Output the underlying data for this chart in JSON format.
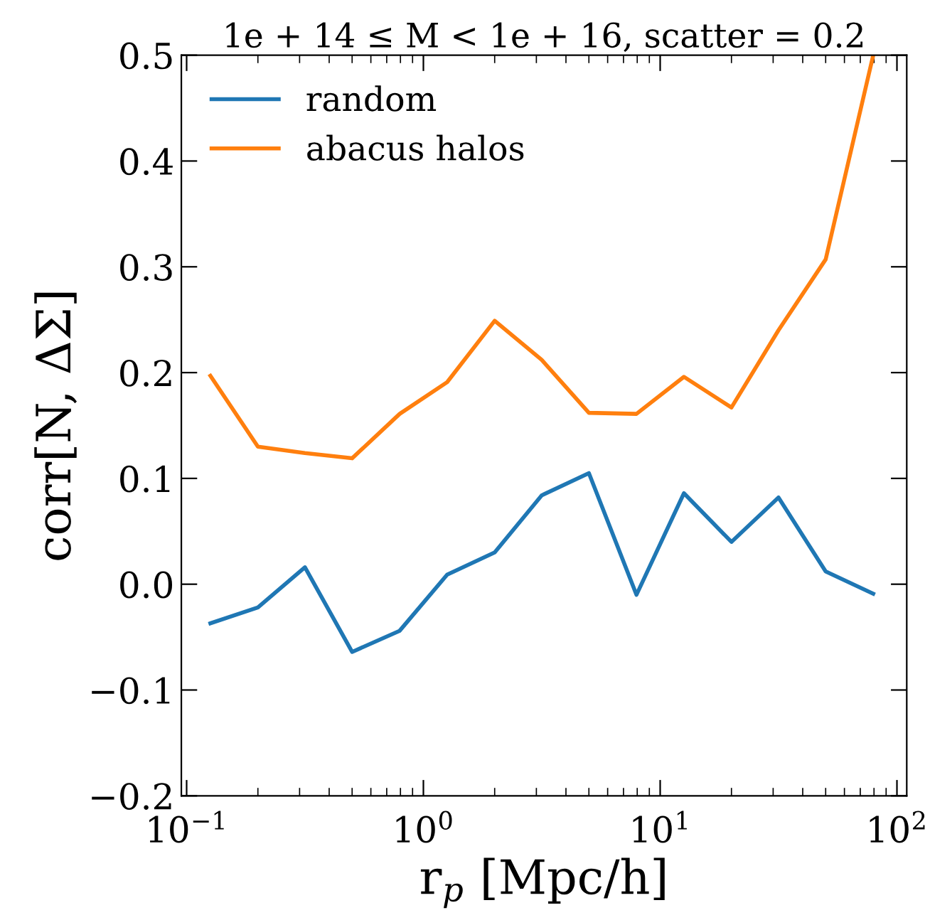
{
  "chart_data": {
    "type": "line",
    "title": "1e + 14 ≤ M < 1e + 16, scatter = 0.2",
    "xlabel": "r$_{p}$ [Mpc/h]",
    "ylabel": "corr[N, ΔΣ]",
    "x": [
      0.126,
      0.2,
      0.316,
      0.5,
      0.794,
      1.26,
      2,
      3.16,
      5,
      7.94,
      12.6,
      20,
      31.6,
      50,
      79.4
    ],
    "series": [
      {
        "name": "random",
        "color": "#1f77b4",
        "values": [
          -0.037,
          -0.022,
          0.016,
          -0.064,
          -0.044,
          0.009,
          0.03,
          0.084,
          0.105,
          -0.01,
          0.086,
          0.04,
          0.082,
          0.012,
          -0.009
        ]
      },
      {
        "name": "abacus halos",
        "color": "#ff7f0e",
        "values": [
          0.197,
          0.13,
          0.124,
          0.119,
          0.161,
          0.191,
          0.249,
          0.212,
          0.162,
          0.161,
          0.196,
          0.167,
          0.24,
          0.307,
          0.5
        ]
      }
    ],
    "log": "x",
    "xlim": [
      0.095,
      110
    ],
    "xticks": [
      {
        "value": 0.1,
        "label": "10$^{−1}$"
      },
      {
        "value": 1,
        "label": "10$^{0}$"
      },
      {
        "value": 10,
        "label": "10$^{1}$"
      },
      {
        "value": 100,
        "label": "10$^{2}$"
      }
    ],
    "ylim": [
      -0.2,
      0.5
    ],
    "yticks": [
      {
        "value": -0.2,
        "label": "−0.2"
      },
      {
        "value": -0.1,
        "label": "−0.1"
      },
      {
        "value": 0.0,
        "label": "0.0"
      },
      {
        "value": 0.1,
        "label": "0.1"
      },
      {
        "value": 0.2,
        "label": "0.2"
      },
      {
        "value": 0.3,
        "label": "0.3"
      },
      {
        "value": 0.4,
        "label": "0.4"
      },
      {
        "value": 0.5,
        "label": "0.5"
      }
    ],
    "grid": false,
    "legend": "top left",
    "marker": "none",
    "line_style": "solid"
  }
}
